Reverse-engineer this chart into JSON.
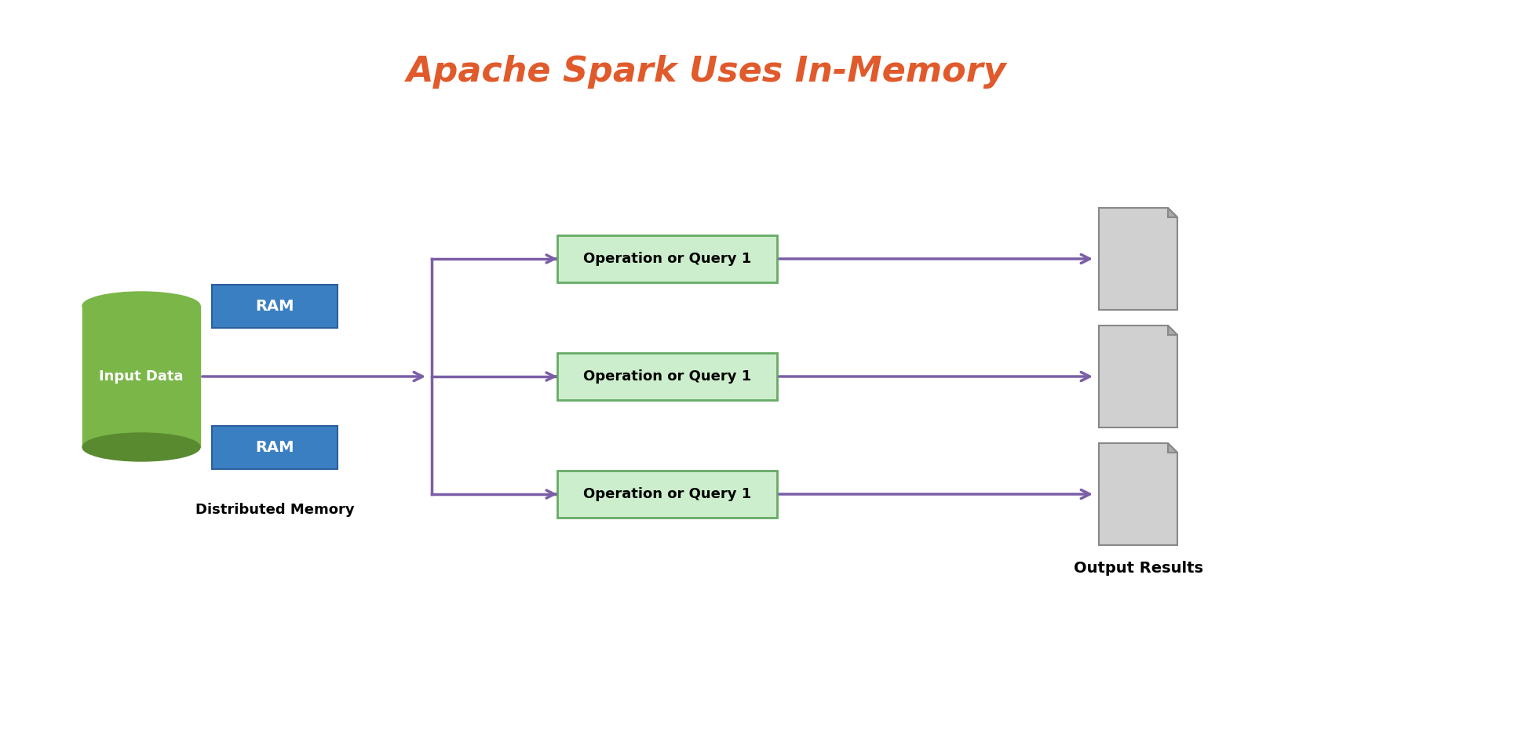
{
  "title": "Apache Spark Uses In-Memory",
  "title_color": "#e05a2b",
  "title_fontsize": 32,
  "bg_color": "#ffffff",
  "arrow_color": "#7b5ea7",
  "ram_color": "#3a7fc1",
  "ram_text_color": "#ffffff",
  "query_bg_color": "#cceecc",
  "query_border_color": "#66aa66",
  "query_text": "Operation or Query 1",
  "cylinder_top_color": "#7ab648",
  "cylinder_body_color": "#7ab648",
  "cylinder_shadow_color": "#5a8a30",
  "input_label": "Input Data",
  "dist_label": "Distributed Memory",
  "output_label": "Output Results",
  "doc_color": "#d0d0d0",
  "doc_fold_color": "#aaaaaa"
}
